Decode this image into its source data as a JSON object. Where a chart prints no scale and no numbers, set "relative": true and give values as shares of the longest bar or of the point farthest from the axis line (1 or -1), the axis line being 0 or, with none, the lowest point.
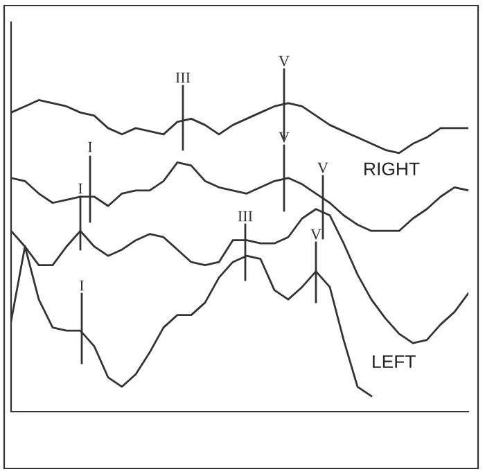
{
  "chart_data": {
    "type": "line",
    "relative": true,
    "categories": [
      null,
      null,
      null,
      null,
      null,
      null,
      null,
      null,
      null,
      null,
      null,
      null,
      null,
      null,
      null,
      null,
      null,
      null,
      null,
      null,
      null,
      null,
      null,
      null,
      null,
      null,
      null,
      null,
      null,
      null,
      null,
      null,
      null,
      null
    ],
    "grid": false,
    "marker": "none",
    "line_style": "solid",
    "series": [
      {
        "color": "#333333",
        "values": [
          0.96,
          0.98,
          1,
          0.99,
          0.98,
          0.96,
          0.95,
          0.91,
          0.89,
          0.91,
          0.9,
          0.89,
          0.93,
          0.94,
          0.92,
          0.89,
          0.92,
          0.94,
          0.96,
          0.98,
          0.99,
          0.98,
          0.95,
          0.92,
          0.9,
          0.88,
          0.86,
          0.84,
          0.83,
          0.86,
          0.88,
          0.91,
          0.91,
          0.91
        ]
      },
      {
        "color": "#333333",
        "values": [
          0.75,
          0.74,
          0.7,
          0.67,
          0.68,
          0.69,
          0.69,
          0.66,
          0.7,
          0.71,
          0.71,
          0.74,
          0.8,
          0.79,
          0.74,
          0.72,
          0.71,
          0.7,
          0.72,
          0.74,
          0.75,
          0.73,
          0.7,
          0.67,
          0.63,
          0.6,
          0.58,
          0.58,
          0.58,
          0.62,
          0.65,
          0.69,
          0.72,
          0.71
        ]
      },
      {
        "color": "#333333",
        "values": [
          0.58,
          0.53,
          0.47,
          0.47,
          0.53,
          0.58,
          0.53,
          0.5,
          0.52,
          0.55,
          0.57,
          0.56,
          0.52,
          0.48,
          0.47,
          0.48,
          0.55,
          0.55,
          0.54,
          0.54,
          0.56,
          0.62,
          0.65,
          0.63,
          0.54,
          0.44,
          0.36,
          0.3,
          0.25,
          0.22,
          0.23,
          0.28,
          0.32,
          0.38
        ]
      },
      {
        "color": "#333333",
        "values": [
          0.29,
          0.53,
          0.36,
          0.27,
          0.26,
          0.26,
          0.21,
          0.11,
          0.08,
          0.12,
          0.19,
          0.27,
          0.31,
          0.31,
          0.35,
          0.43,
          0.48,
          0.5,
          0.49,
          0.39,
          0.36,
          0.4,
          0.45,
          0.4,
          0.23,
          0.08,
          0.05,
          null,
          null,
          null,
          null,
          null,
          null,
          null
        ]
      }
    ],
    "annotations": [
      "I",
      "I",
      "I",
      "III",
      "III",
      "V",
      "V",
      "V",
      "V",
      "RIGHT",
      "LEFT"
    ]
  }
}
